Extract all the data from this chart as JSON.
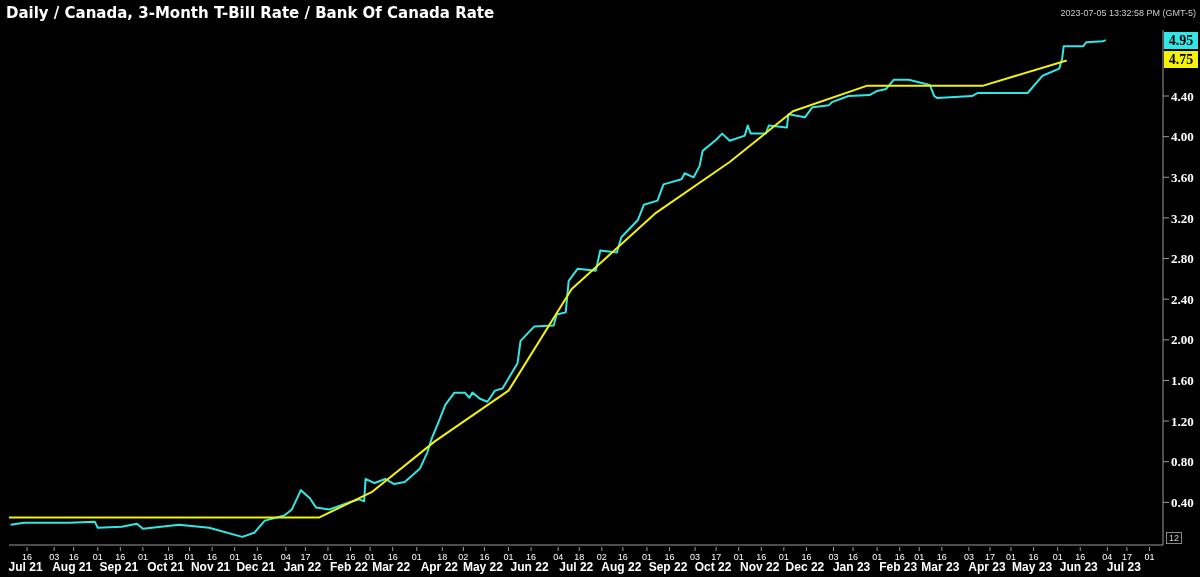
{
  "chart_data": {
    "type": "line",
    "title": "Daily / Canada, 3-Month T-Bill Rate / Bank Of Canada Rate",
    "xlim": [
      "2021-07-04",
      "2023-08-10"
    ],
    "ylim": [
      -0.02,
      5.05
    ],
    "yticks": [
      {
        "value": 0.4,
        "label": "0.40"
      },
      {
        "value": 0.8,
        "label": "0.80"
      },
      {
        "value": 1.2,
        "label": "1.20"
      },
      {
        "value": 1.6,
        "label": "1.60"
      },
      {
        "value": 2.0,
        "label": "2.00"
      },
      {
        "value": 2.4,
        "label": "2.40"
      },
      {
        "value": 2.8,
        "label": "2.80"
      },
      {
        "value": 3.2,
        "label": "3.20"
      },
      {
        "value": 3.6,
        "label": "3.60"
      },
      {
        "value": 4.0,
        "label": "4.00"
      },
      {
        "value": 4.4,
        "label": "4.40"
      }
    ],
    "xticks": [
      {
        "value": "2021-07-16",
        "label": "16"
      },
      {
        "value": "2021-08-03",
        "label": "03"
      },
      {
        "value": "2021-08-16",
        "label": "16"
      },
      {
        "value": "2021-09-01",
        "label": "01"
      },
      {
        "value": "2021-09-16",
        "label": "16"
      },
      {
        "value": "2021-10-01",
        "label": "01"
      },
      {
        "value": "2021-10-18",
        "label": "18"
      },
      {
        "value": "2021-11-01",
        "label": "01"
      },
      {
        "value": "2021-11-16",
        "label": "16"
      },
      {
        "value": "2021-12-01",
        "label": "01"
      },
      {
        "value": "2021-12-16",
        "label": "16"
      },
      {
        "value": "2022-01-04",
        "label": "04"
      },
      {
        "value": "2022-01-17",
        "label": "17"
      },
      {
        "value": "2022-02-01",
        "label": "01"
      },
      {
        "value": "2022-02-16",
        "label": "16"
      },
      {
        "value": "2022-03-01",
        "label": "01"
      },
      {
        "value": "2022-03-16",
        "label": "16"
      },
      {
        "value": "2022-04-01",
        "label": "01"
      },
      {
        "value": "2022-04-18",
        "label": "18"
      },
      {
        "value": "2022-05-02",
        "label": "02"
      },
      {
        "value": "2022-05-16",
        "label": "16"
      },
      {
        "value": "2022-06-01",
        "label": "01"
      },
      {
        "value": "2022-06-16",
        "label": "16"
      },
      {
        "value": "2022-07-04",
        "label": "04"
      },
      {
        "value": "2022-07-18",
        "label": "18"
      },
      {
        "value": "2022-08-02",
        "label": "02"
      },
      {
        "value": "2022-08-16",
        "label": "16"
      },
      {
        "value": "2022-09-01",
        "label": "01"
      },
      {
        "value": "2022-09-16",
        "label": "16"
      },
      {
        "value": "2022-10-03",
        "label": "03"
      },
      {
        "value": "2022-10-17",
        "label": "17"
      },
      {
        "value": "2022-11-01",
        "label": "01"
      },
      {
        "value": "2022-11-16",
        "label": "16"
      },
      {
        "value": "2022-12-01",
        "label": "01"
      },
      {
        "value": "2022-12-16",
        "label": "16"
      },
      {
        "value": "2023-01-03",
        "label": "03"
      },
      {
        "value": "2023-01-16",
        "label": "16"
      },
      {
        "value": "2023-02-01",
        "label": "01"
      },
      {
        "value": "2023-02-16",
        "label": "16"
      },
      {
        "value": "2023-03-01",
        "label": "01"
      },
      {
        "value": "2023-03-16",
        "label": "16"
      },
      {
        "value": "2023-04-03",
        "label": "03"
      },
      {
        "value": "2023-04-17",
        "label": "17"
      },
      {
        "value": "2023-05-01",
        "label": "01"
      },
      {
        "value": "2023-05-16",
        "label": "16"
      },
      {
        "value": "2023-06-01",
        "label": "01"
      },
      {
        "value": "2023-06-16",
        "label": "16"
      },
      {
        "value": "2023-07-04",
        "label": "04"
      },
      {
        "value": "2023-07-17",
        "label": "17"
      },
      {
        "value": "2023-08-01",
        "label": "01"
      }
    ],
    "x2lim": [
      "2021-07-04",
      "2023-08-10"
    ],
    "x2ticks": [
      {
        "value": "2021-07-15",
        "label": "Jul 21"
      },
      {
        "value": "2021-08-15",
        "label": "Aug 21"
      },
      {
        "value": "2021-09-15",
        "label": "Sep 21"
      },
      {
        "value": "2021-10-16",
        "label": "Oct 21"
      },
      {
        "value": "2021-11-15",
        "label": "Nov 21"
      },
      {
        "value": "2021-12-15",
        "label": "Dec 21"
      },
      {
        "value": "2022-01-15",
        "label": "Jan 22"
      },
      {
        "value": "2022-02-15",
        "label": "Feb 22"
      },
      {
        "value": "2022-03-15",
        "label": "Mar 22"
      },
      {
        "value": "2022-04-16",
        "label": "Apr 22"
      },
      {
        "value": "2022-05-15",
        "label": "May 22"
      },
      {
        "value": "2022-06-15",
        "label": "Jun 22"
      },
      {
        "value": "2022-07-16",
        "label": "Jul 22"
      },
      {
        "value": "2022-08-15",
        "label": "Aug 22"
      },
      {
        "value": "2022-09-15",
        "label": "Sep 22"
      },
      {
        "value": "2022-10-15",
        "label": "Oct 22"
      },
      {
        "value": "2022-11-15",
        "label": "Nov 22"
      },
      {
        "value": "2022-12-15",
        "label": "Dec 22"
      },
      {
        "value": "2023-01-15",
        "label": "Jan 23"
      },
      {
        "value": "2023-02-15",
        "label": "Feb 23"
      },
      {
        "value": "2023-03-15",
        "label": "Mar 23"
      },
      {
        "value": "2023-04-15",
        "label": "Apr 23"
      },
      {
        "value": "2023-05-15",
        "label": "May 23"
      },
      {
        "value": "2023-06-15",
        "label": "Jun 23"
      },
      {
        "value": "2023-07-15",
        "label": "Jul 23"
      }
    ],
    "grid": false,
    "legend": false,
    "marker": "none",
    "line_style": "solid",
    "series": [
      {
        "color": "#33e6e6",
        "x": [
          "2021-07-05",
          "2021-07-14",
          "2021-08-13",
          "2021-08-30",
          "2021-09-01",
          "2021-09-17",
          "2021-09-27",
          "2021-10-01",
          "2021-10-25",
          "2021-11-14",
          "2021-12-06",
          "2021-12-14",
          "2021-12-21",
          "2022-01-03",
          "2022-01-08",
          "2022-01-14",
          "2022-01-20",
          "2022-01-24",
          "2022-02-02",
          "2022-02-15",
          "2022-02-22",
          "2022-02-25",
          "2022-02-26",
          "2022-03-04",
          "2022-03-11",
          "2022-03-17",
          "2022-03-24",
          "2022-04-03",
          "2022-04-08",
          "2022-04-11",
          "2022-04-16",
          "2022-04-20",
          "2022-04-26",
          "2022-05-03",
          "2022-05-06",
          "2022-05-08",
          "2022-05-13",
          "2022-05-18",
          "2022-05-23",
          "2022-05-28",
          "2022-06-07",
          "2022-06-09",
          "2022-06-18",
          "2022-07-01",
          "2022-07-03",
          "2022-07-09",
          "2022-07-11",
          "2022-07-17",
          "2022-07-29",
          "2022-08-01",
          "2022-08-12",
          "2022-08-15",
          "2022-08-26",
          "2022-08-30",
          "2022-09-08",
          "2022-09-12",
          "2022-09-24",
          "2022-09-26",
          "2022-10-02",
          "2022-10-06",
          "2022-10-08",
          "2022-10-17",
          "2022-10-21",
          "2022-10-26",
          "2022-11-05",
          "2022-11-07",
          "2022-11-09",
          "2022-11-19",
          "2022-11-21",
          "2022-12-03",
          "2022-12-04",
          "2022-12-15",
          "2022-12-20",
          "2022-12-31",
          "2023-01-02",
          "2023-01-13",
          "2023-01-27",
          "2023-02-01",
          "2023-02-07",
          "2023-02-12",
          "2023-02-22",
          "2023-03-02",
          "2023-03-08",
          "2023-03-11",
          "2023-03-13",
          "2023-04-05",
          "2023-04-09",
          "2023-05-12",
          "2023-05-22",
          "2023-06-02",
          "2023-06-04",
          "2023-06-05",
          "2023-06-18",
          "2023-06-20",
          "2023-07-01",
          "2023-07-03"
        ],
        "values": [
          0.18,
          0.2,
          0.2,
          0.21,
          0.15,
          0.16,
          0.19,
          0.14,
          0.18,
          0.15,
          0.06,
          0.1,
          0.22,
          0.27,
          0.33,
          0.52,
          0.44,
          0.35,
          0.33,
          0.4,
          0.43,
          0.41,
          0.63,
          0.59,
          0.63,
          0.58,
          0.6,
          0.73,
          0.89,
          1.03,
          1.21,
          1.36,
          1.48,
          1.48,
          1.43,
          1.48,
          1.42,
          1.39,
          1.5,
          1.52,
          1.77,
          1.99,
          2.13,
          2.14,
          2.25,
          2.27,
          2.58,
          2.7,
          2.68,
          2.88,
          2.86,
          3.01,
          3.18,
          3.33,
          3.37,
          3.53,
          3.58,
          3.64,
          3.6,
          3.71,
          3.86,
          3.97,
          4.03,
          3.96,
          4.01,
          4.11,
          4.03,
          4.03,
          4.11,
          4.09,
          4.22,
          4.19,
          4.29,
          4.31,
          4.34,
          4.4,
          4.41,
          4.45,
          4.47,
          4.56,
          4.56,
          4.53,
          4.51,
          4.4,
          4.38,
          4.4,
          4.43,
          4.43,
          4.6,
          4.67,
          4.77,
          4.89,
          4.89,
          4.93,
          4.94,
          4.95
        ]
      },
      {
        "color": "#f2f20a",
        "x": [
          "2021-07-04",
          "2021-07-14",
          "2021-09-08",
          "2021-10-27",
          "2021-12-08",
          "2022-01-26",
          "2022-03-02",
          "2022-04-13",
          "2022-06-01",
          "2022-07-13",
          "2022-09-07",
          "2022-10-26",
          "2022-12-07",
          "2023-01-25",
          "2023-03-08",
          "2023-04-12",
          "2023-06-07"
        ],
        "values": [
          0.25,
          0.25,
          0.25,
          0.25,
          0.25,
          0.25,
          0.5,
          1.0,
          1.5,
          2.5,
          3.25,
          3.75,
          4.25,
          4.5,
          4.5,
          4.5,
          4.75
        ]
      }
    ],
    "annotations": [
      "4.95",
      "4.75",
      "2023-07-05 13:32:58 PM  (GMT-5)",
      "12"
    ]
  }
}
